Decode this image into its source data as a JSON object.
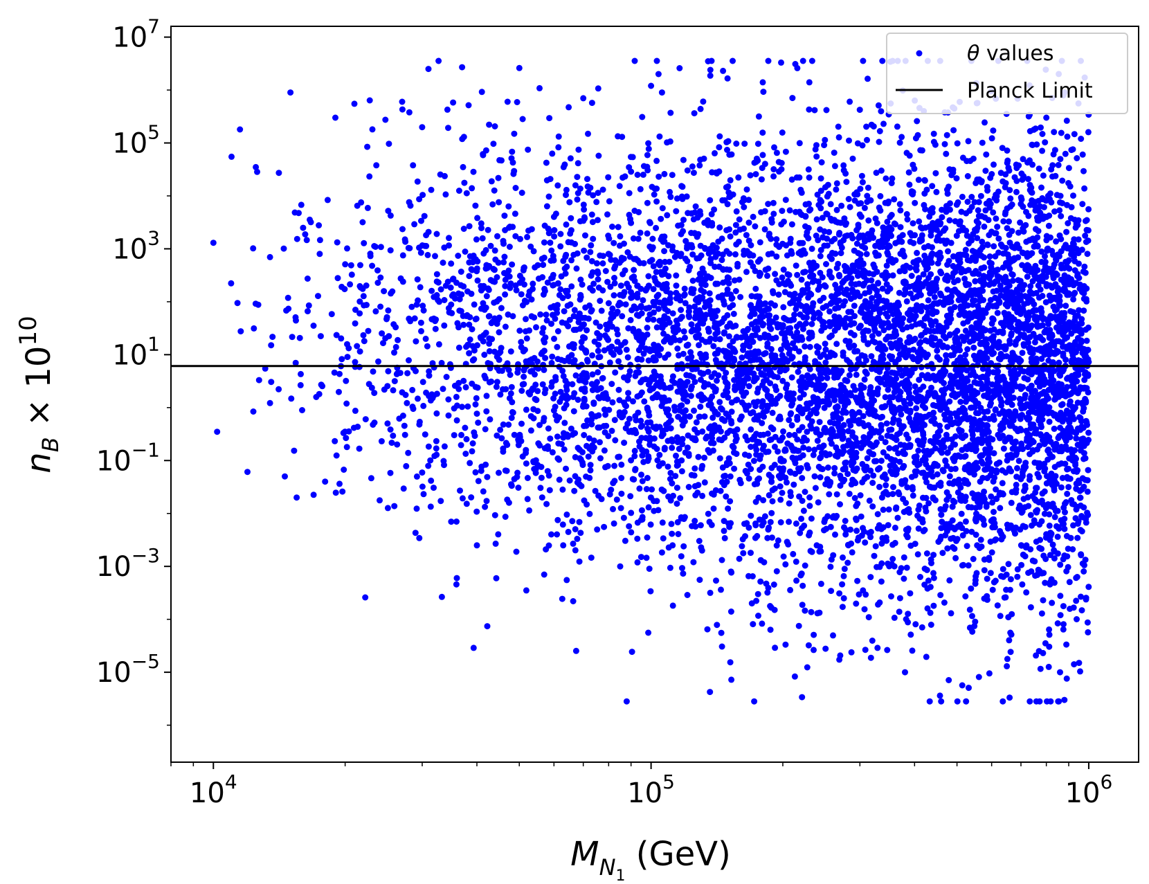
{
  "chart_data": {
    "type": "scatter",
    "xscale": "log",
    "yscale": "log",
    "xlim": [
      8000,
      1300000
    ],
    "ylim": [
      2e-07,
      16000000.0
    ],
    "grid": false,
    "xlabel": {
      "main": "M",
      "sub": "N",
      "subsub": "1",
      "unit": " (GeV)"
    },
    "ylabel": {
      "main": "n",
      "sub": "B",
      "times": " × 10",
      "exp": "10"
    },
    "x_ticks": [
      {
        "base": "10",
        "exp": "4",
        "value": 10000
      },
      {
        "base": "10",
        "exp": "5",
        "value": 100000
      },
      {
        "base": "10",
        "exp": "6",
        "value": 1000000
      }
    ],
    "y_ticks": [
      {
        "base": "10",
        "exp": "7",
        "value": 10000000
      },
      {
        "base": "10",
        "exp": "5",
        "value": 100000
      },
      {
        "base": "10",
        "exp": "3",
        "value": 1000
      },
      {
        "base": "10",
        "exp": "1",
        "value": 10
      },
      {
        "base": "10",
        "exp": "−1",
        "value": 0.1
      },
      {
        "base": "10",
        "exp": "−3",
        "value": 0.001
      },
      {
        "base": "10",
        "exp": "−5",
        "value": 1e-05
      }
    ],
    "legend": {
      "position": "top-right",
      "entries": [
        {
          "label_symbol": "θ",
          "label_text": " values",
          "kind": "marker"
        },
        {
          "label_text": "Planck Limit",
          "kind": "line"
        }
      ]
    },
    "series": [
      {
        "name": "θ values",
        "kind": "scatter",
        "color": "#0000ff",
        "n_points": 6800,
        "x_range": [
          10000,
          1000000
        ],
        "density_trend": "increasing toward high x",
        "y_log10_center": 0.6,
        "y_log10_spread": 2.0,
        "y_log10_max": 6.55,
        "y_log10_min": -5.55,
        "sample_points": [
          [
            10000,
            1300.0
          ],
          [
            10200,
            0.35
          ],
          [
            11000,
            55000.0
          ],
          [
            11500,
            180000.0
          ],
          [
            12500,
            35000.0
          ],
          [
            15000,
            900000.0
          ],
          [
            15500,
            0.02
          ],
          [
            18000,
            0.04
          ],
          [
            19000,
            300000.0
          ],
          [
            21000,
            550000.0
          ],
          [
            25000,
            0.5
          ],
          [
            27000,
            600000.0
          ],
          [
            31000,
            2500000.0
          ],
          [
            36000,
            0.0006
          ],
          [
            37000,
            2700000.0
          ],
          [
            40000,
            0.0025
          ],
          [
            47000,
            600000.0
          ],
          [
            50000,
            2600000.0
          ],
          [
            57000,
            0.0007
          ],
          [
            63000,
            0.0025
          ],
          [
            70000,
            700000.0
          ],
          [
            85000,
            0.001
          ],
          [
            100000,
            1200000.0
          ],
          [
            104000,
            2000000.0
          ],
          [
            112000,
            0.0025
          ],
          [
            125000,
            0.0012
          ],
          [
            135000,
            3500000.0
          ],
          [
            170000,
            0.0002
          ],
          [
            180000,
            1400000.0
          ],
          [
            230000,
            1400000.0
          ],
          [
            240000,
            0.00013
          ],
          [
            330000,
            0.00019
          ],
          [
            420000,
            400000.0
          ],
          [
            550000,
            9e-05
          ],
          [
            650000,
            1.3e-05
          ],
          [
            800000,
            300000.0
          ],
          [
            860000,
            1e-05
          ],
          [
            880000,
            3e-06
          ],
          [
            950000,
            1.5e-05
          ],
          [
            960000,
            120000.0
          ]
        ]
      },
      {
        "name": "Planck Limit",
        "kind": "hline",
        "color": "#000000",
        "y": 6.1
      }
    ]
  }
}
